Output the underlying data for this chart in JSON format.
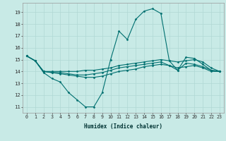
{
  "title": "",
  "xlabel": "Humidex (Indice chaleur)",
  "background_color": "#c8eae6",
  "grid_color": "#b0d8d4",
  "line_color": "#007070",
  "x_ticks": [
    0,
    1,
    2,
    3,
    4,
    5,
    6,
    7,
    8,
    9,
    10,
    11,
    12,
    13,
    14,
    15,
    16,
    17,
    18,
    19,
    20,
    21,
    22,
    23
  ],
  "y_ticks": [
    11,
    12,
    13,
    14,
    15,
    16,
    17,
    18,
    19
  ],
  "ylim": [
    10.5,
    19.8
  ],
  "xlim": [
    -0.5,
    23.5
  ],
  "lines": [
    [
      15.3,
      14.9,
      13.9,
      13.4,
      13.1,
      12.2,
      11.6,
      11.0,
      11.0,
      12.2,
      15.0,
      17.4,
      16.7,
      18.4,
      19.1,
      19.3,
      18.9,
      14.9,
      14.1,
      15.2,
      15.1,
      14.6,
      14.1,
      14.0
    ],
    [
      15.3,
      14.9,
      14.0,
      14.0,
      14.0,
      14.0,
      14.0,
      14.1,
      14.1,
      14.2,
      14.3,
      14.5,
      14.6,
      14.7,
      14.8,
      14.9,
      15.0,
      14.9,
      14.8,
      14.9,
      15.0,
      14.8,
      14.3,
      14.0
    ],
    [
      15.3,
      14.9,
      14.0,
      13.9,
      13.8,
      13.7,
      13.6,
      13.5,
      13.5,
      13.6,
      13.8,
      14.0,
      14.1,
      14.2,
      14.4,
      14.5,
      14.6,
      14.5,
      14.3,
      14.4,
      14.5,
      14.3,
      14.0,
      14.0
    ],
    [
      15.3,
      14.9,
      14.0,
      13.9,
      13.9,
      13.8,
      13.7,
      13.7,
      13.8,
      13.9,
      14.1,
      14.3,
      14.4,
      14.5,
      14.6,
      14.7,
      14.8,
      14.5,
      14.1,
      14.7,
      14.6,
      14.4,
      14.1,
      14.0
    ]
  ],
  "xlabel_fontsize": 5.5,
  "tick_fontsize": 4.8,
  "ytick_fontsize": 5.2
}
